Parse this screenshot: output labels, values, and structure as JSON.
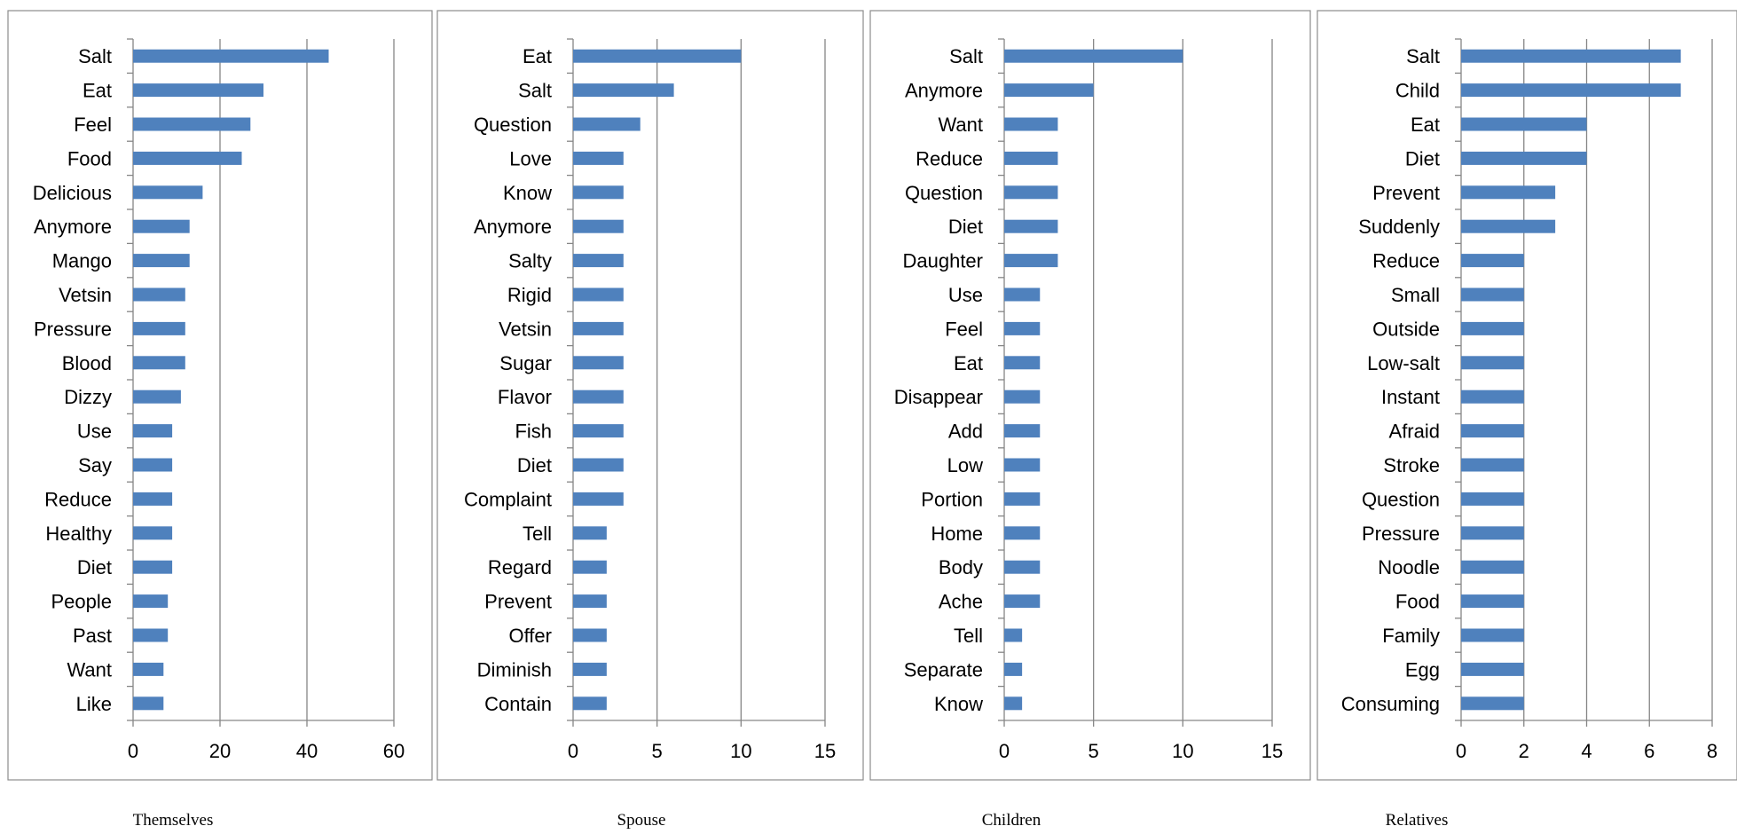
{
  "chart_data": [
    {
      "type": "bar",
      "orientation": "horizontal",
      "caption": "Themselves",
      "xlim": [
        0,
        60
      ],
      "xticks": [
        0,
        20,
        40,
        60
      ],
      "grid": true,
      "bar_color": "#4f81bd",
      "categories": [
        "Salt",
        "Eat",
        "Feel",
        "Food",
        "Delicious",
        "Anymore",
        "Mango",
        "Vetsin",
        "Pressure",
        "Blood",
        "Dizzy",
        "Use",
        "Say",
        "Reduce",
        "Healthy",
        "Diet",
        "People",
        "Past",
        "Want",
        "Like"
      ],
      "values": [
        45,
        30,
        27,
        25,
        16,
        13,
        13,
        12,
        12,
        12,
        11,
        9,
        9,
        9,
        9,
        9,
        8,
        8,
        7,
        7
      ]
    },
    {
      "type": "bar",
      "orientation": "horizontal",
      "caption": "Spouse",
      "xlim": [
        0,
        15
      ],
      "xticks": [
        0,
        5,
        10,
        15
      ],
      "grid": true,
      "bar_color": "#4f81bd",
      "categories": [
        "Eat",
        "Salt",
        "Question",
        "Love",
        "Know",
        "Anymore",
        "Salty",
        "Rigid",
        "Vetsin",
        "Sugar",
        "Flavor",
        "Fish",
        "Diet",
        "Complaint",
        "Tell",
        "Regard",
        "Prevent",
        "Offer",
        "Diminish",
        "Contain"
      ],
      "values": [
        10,
        6,
        4,
        3,
        3,
        3,
        3,
        3,
        3,
        3,
        3,
        3,
        3,
        3,
        2,
        2,
        2,
        2,
        2,
        2
      ]
    },
    {
      "type": "bar",
      "orientation": "horizontal",
      "caption": "Children",
      "xlim": [
        0,
        15
      ],
      "xticks": [
        0,
        5,
        10,
        15
      ],
      "grid": true,
      "bar_color": "#4f81bd",
      "categories": [
        "Salt",
        "Anymore",
        "Want",
        "Reduce",
        "Question",
        "Diet",
        "Daughter",
        "Use",
        "Feel",
        "Eat",
        "Disappear",
        "Add",
        "Low",
        "Portion",
        "Home",
        "Body",
        "Ache",
        "Tell",
        "Separate",
        "Know"
      ],
      "values": [
        10,
        5,
        3,
        3,
        3,
        3,
        3,
        2,
        2,
        2,
        2,
        2,
        2,
        2,
        2,
        2,
        2,
        1,
        1,
        1
      ]
    },
    {
      "type": "bar",
      "orientation": "horizontal",
      "caption": "Relatives",
      "xlim": [
        0,
        8
      ],
      "xticks": [
        0,
        2,
        4,
        6,
        8
      ],
      "grid": true,
      "bar_color": "#4f81bd",
      "categories": [
        "Salt",
        "Child",
        "Eat",
        "Diet",
        "Prevent",
        "Suddenly",
        "Reduce",
        "Small",
        "Outside",
        "Low-salt",
        "Instant",
        "Afraid",
        "Stroke",
        "Question",
        "Pressure",
        "Noodle",
        "Food",
        "Family",
        "Egg",
        "Consuming"
      ],
      "values": [
        7,
        7,
        4,
        4,
        3,
        3,
        2,
        2,
        2,
        2,
        2,
        2,
        2,
        2,
        2,
        2,
        2,
        2,
        2,
        2
      ]
    }
  ]
}
